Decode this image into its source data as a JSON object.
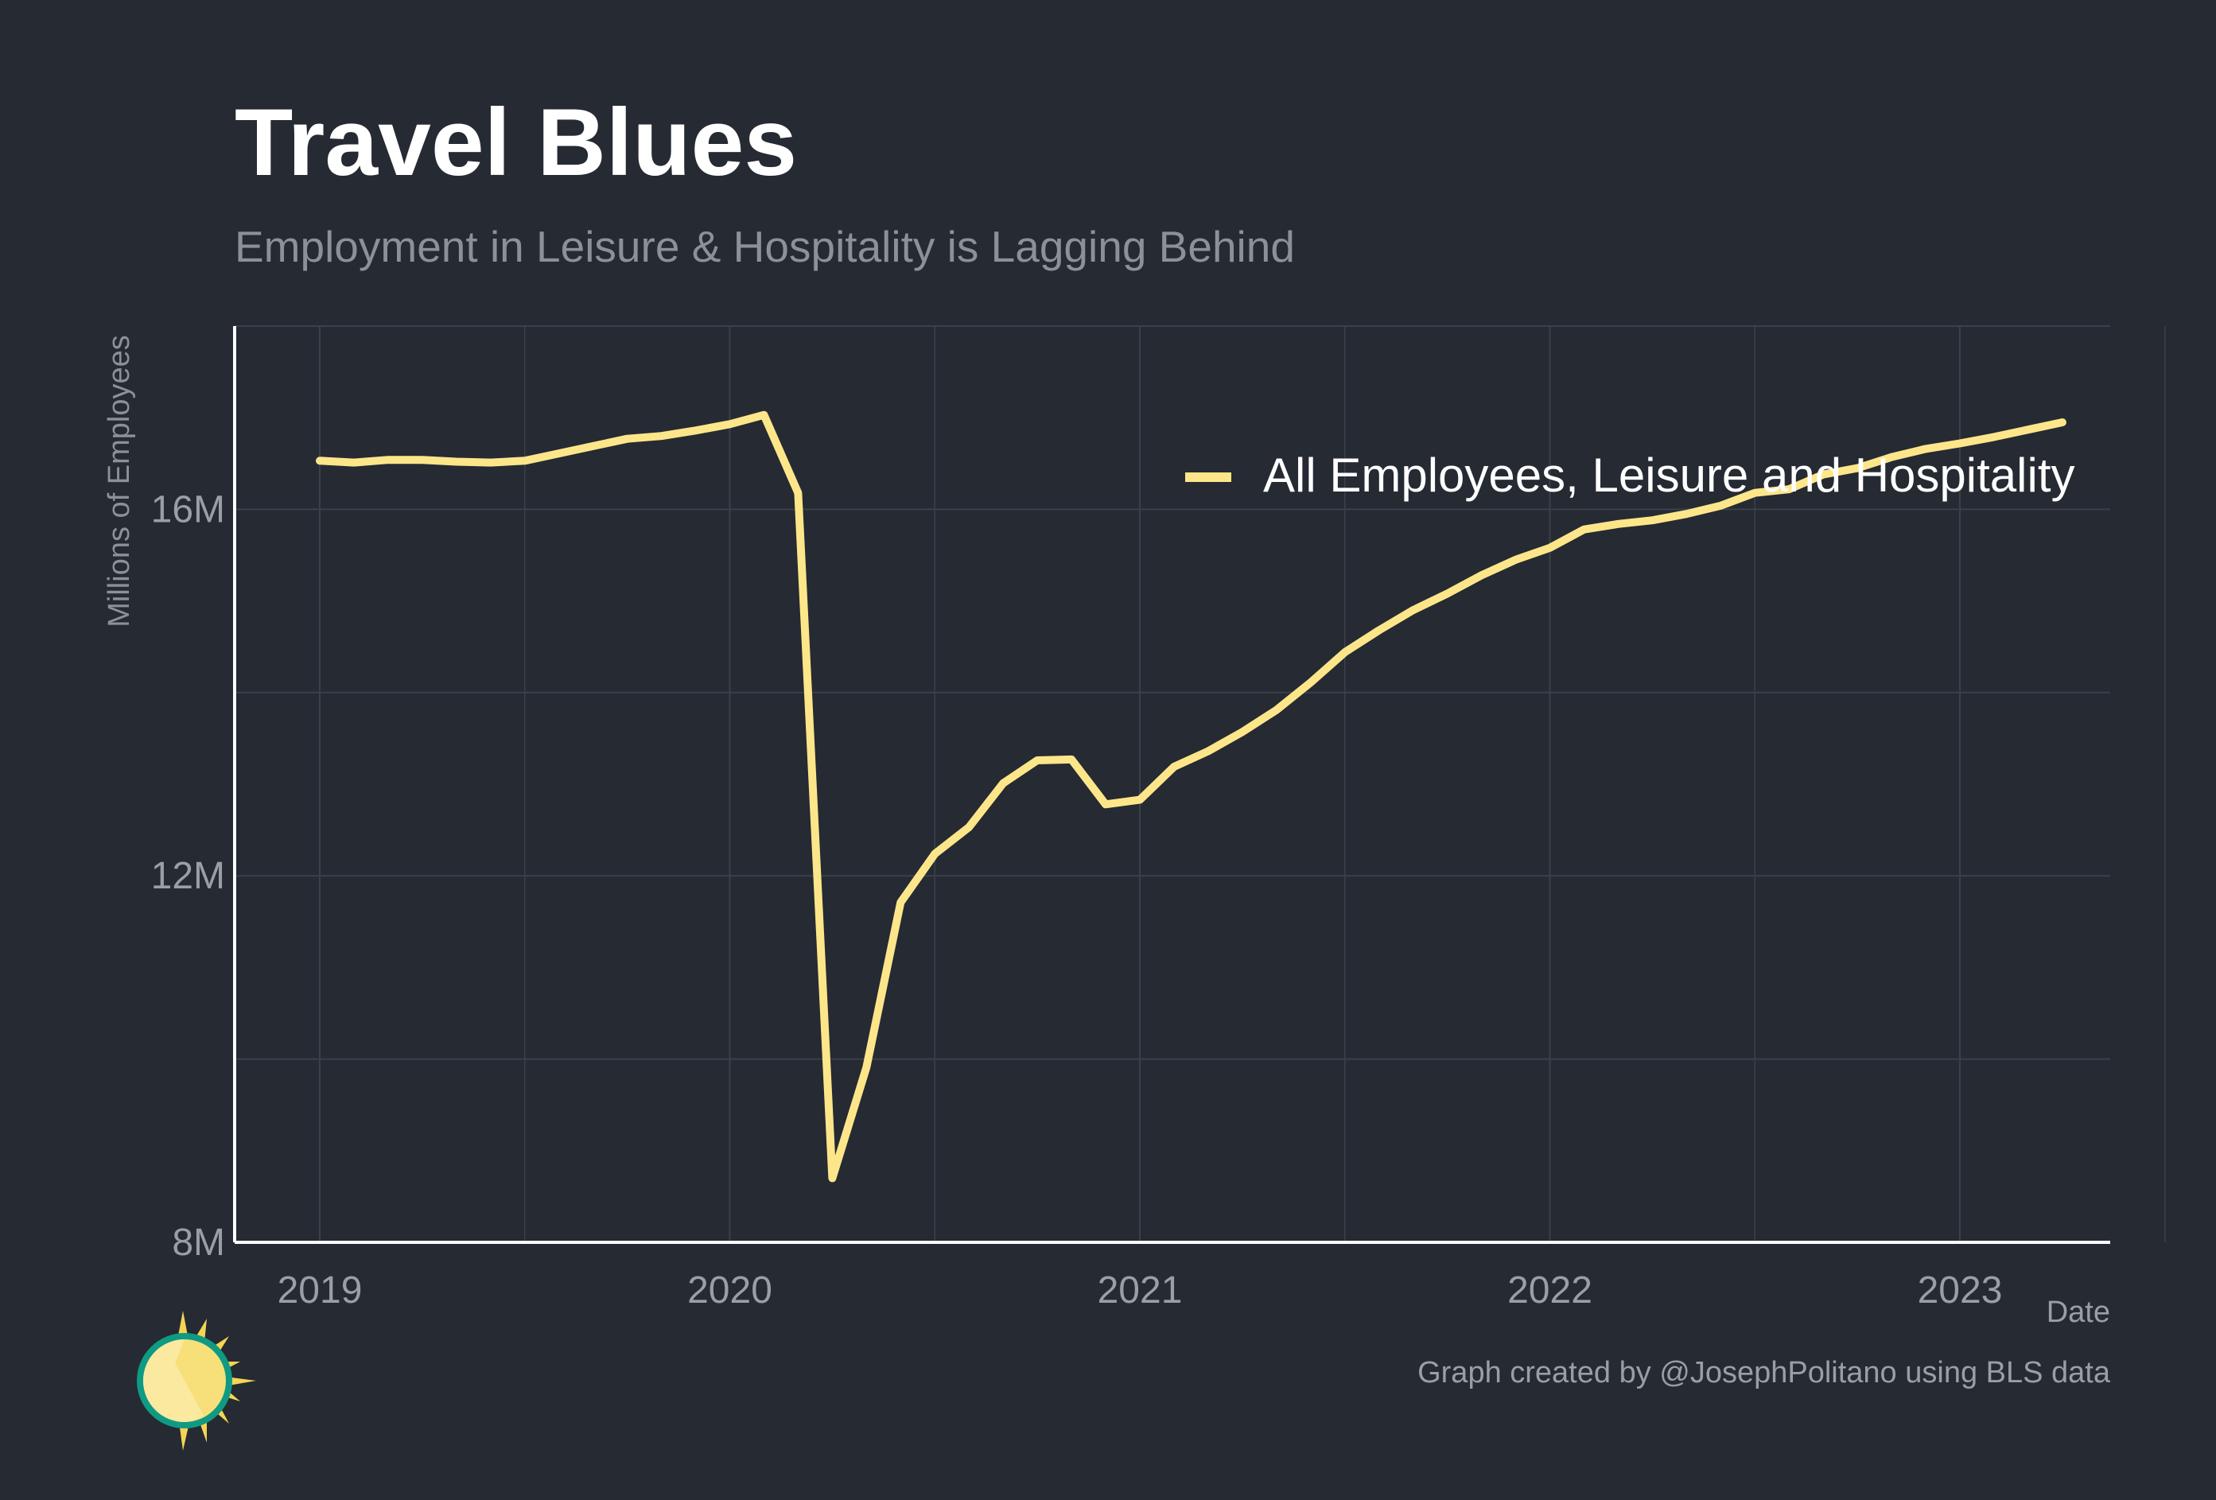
{
  "chart_data": {
    "type": "line",
    "title": "Travel Blues",
    "subtitle": "Employment in Leisure & Hospitality is Lagging Behind",
    "xlabel": "Date",
    "ylabel": "Millions of Employees",
    "x_ticks": [
      "2019",
      "2020",
      "2021",
      "2022",
      "2023"
    ],
    "y_ticks": [
      "8M",
      "12M",
      "16M"
    ],
    "xlim": [
      "2018-10",
      "2023-07"
    ],
    "ylim": [
      8.0,
      18.0
    ],
    "grid": true,
    "legend_position": "top-right",
    "caption": "Graph created by @JosephPolitano using BLS data",
    "colors": {
      "background": "#252a33",
      "line": "#fde68a",
      "grid": "#3b404a",
      "axis": "#ffffff",
      "muted_text": "#8c9097"
    },
    "series": [
      {
        "name": "All Employees, Leisure and Hospitality",
        "color": "#fde68a",
        "points": [
          [
            "2019-01",
            16.53
          ],
          [
            "2019-02",
            16.51
          ],
          [
            "2019-03",
            16.54
          ],
          [
            "2019-04",
            16.54
          ],
          [
            "2019-05",
            16.52
          ],
          [
            "2019-06",
            16.51
          ],
          [
            "2019-07",
            16.53
          ],
          [
            "2019-08",
            16.61
          ],
          [
            "2019-09",
            16.69
          ],
          [
            "2019-10",
            16.77
          ],
          [
            "2019-11",
            16.8
          ],
          [
            "2019-12",
            16.86
          ],
          [
            "2020-01",
            16.93
          ],
          [
            "2020-02",
            17.03
          ],
          [
            "2020-03",
            16.18
          ],
          [
            "2020-04",
            8.7
          ],
          [
            "2020-05",
            9.91
          ],
          [
            "2020-06",
            11.71
          ],
          [
            "2020-07",
            12.24
          ],
          [
            "2020-08",
            12.53
          ],
          [
            "2020-09",
            13.01
          ],
          [
            "2020-10",
            13.26
          ],
          [
            "2020-11",
            13.27
          ],
          [
            "2020-12",
            12.78
          ],
          [
            "2021-01",
            12.83
          ],
          [
            "2021-02",
            13.19
          ],
          [
            "2021-03",
            13.36
          ],
          [
            "2021-04",
            13.57
          ],
          [
            "2021-05",
            13.81
          ],
          [
            "2021-06",
            14.11
          ],
          [
            "2021-07",
            14.44
          ],
          [
            "2021-08",
            14.68
          ],
          [
            "2021-09",
            14.9
          ],
          [
            "2021-10",
            15.08
          ],
          [
            "2021-11",
            15.28
          ],
          [
            "2021-12",
            15.45
          ],
          [
            "2022-01",
            15.58
          ],
          [
            "2022-02",
            15.78
          ],
          [
            "2022-03",
            15.84
          ],
          [
            "2022-04",
            15.88
          ],
          [
            "2022-05",
            15.95
          ],
          [
            "2022-06",
            16.04
          ],
          [
            "2022-07",
            16.18
          ],
          [
            "2022-08",
            16.22
          ],
          [
            "2022-09",
            16.38
          ],
          [
            "2022-10",
            16.45
          ],
          [
            "2022-11",
            16.57
          ],
          [
            "2022-12",
            16.66
          ],
          [
            "2023-01",
            16.72
          ],
          [
            "2023-02",
            16.79
          ],
          [
            "2023-03",
            16.87
          ],
          [
            "2023-04",
            16.95
          ]
        ]
      }
    ]
  }
}
